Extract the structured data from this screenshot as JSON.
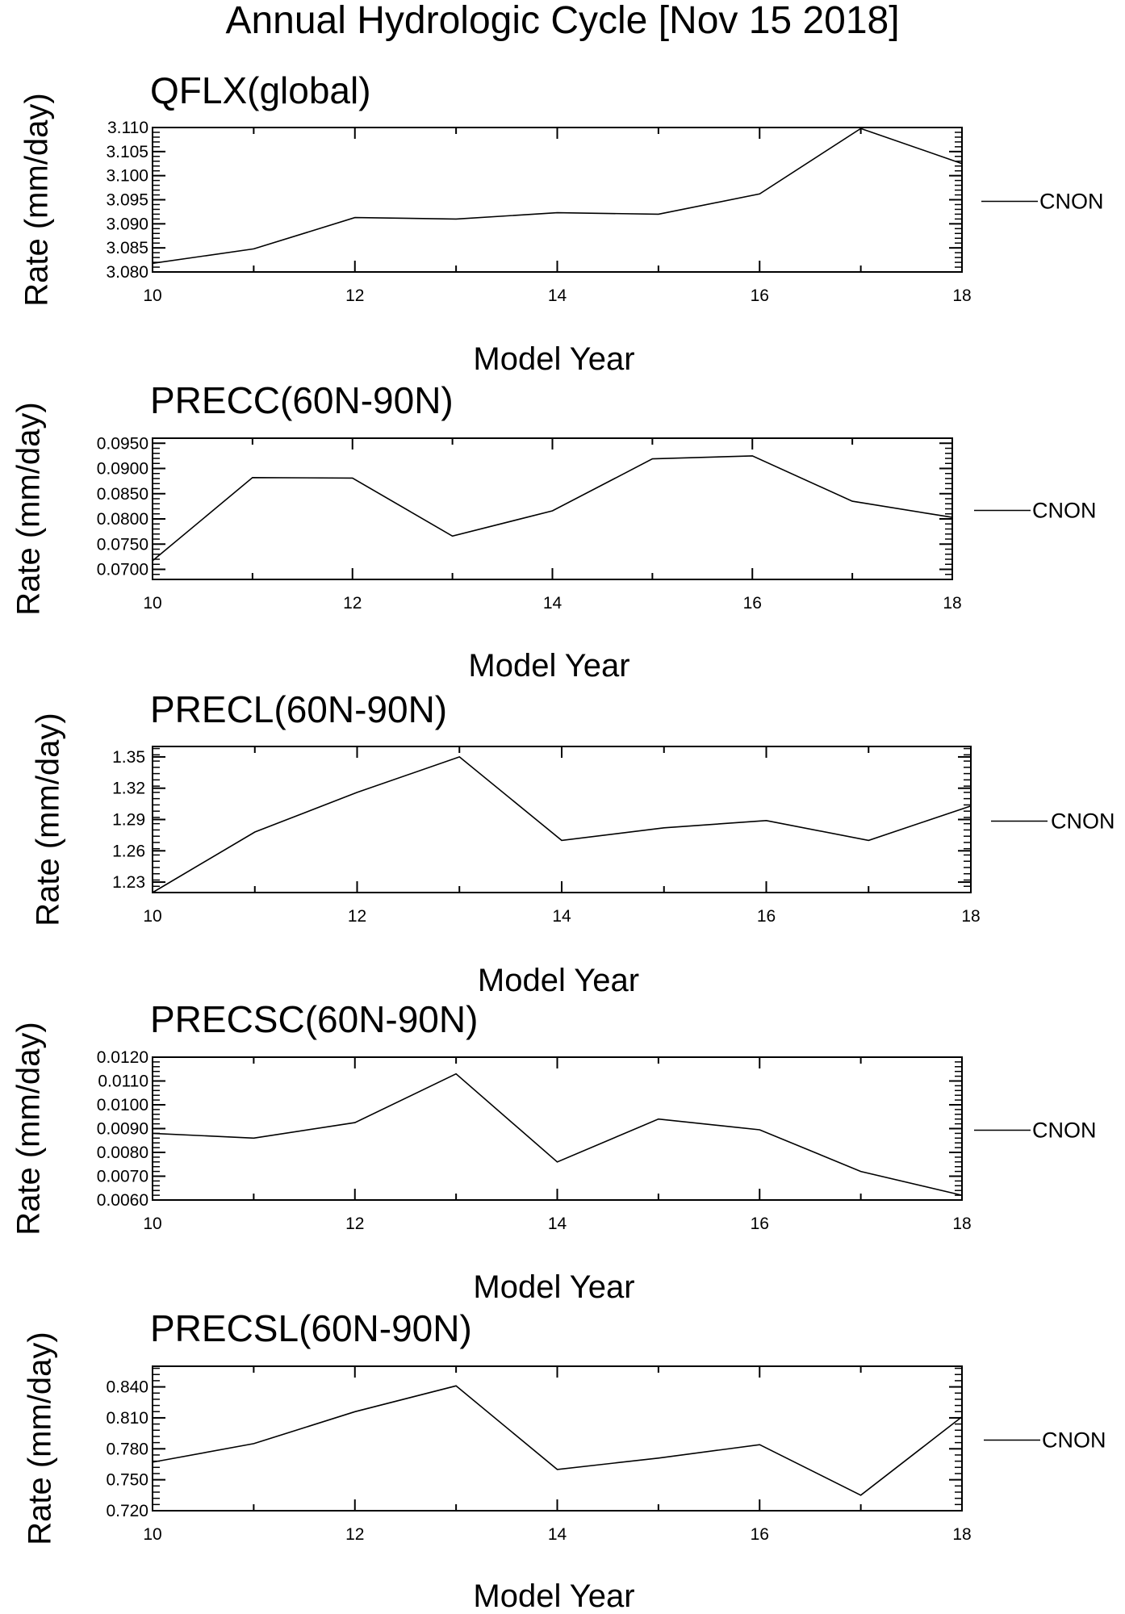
{
  "page": {
    "title": "Annual Hydrologic Cycle [Nov 15 2018]"
  },
  "chart_data": [
    {
      "type": "line",
      "title": "QFLX(global)",
      "xlabel": "Model Year",
      "ylabel": "Rate (mm/day)",
      "x": [
        10,
        11,
        12,
        13,
        14,
        15,
        16,
        17,
        18
      ],
      "xticks": [
        "10",
        "12",
        "14",
        "16",
        "18"
      ],
      "xlim": [
        10,
        18
      ],
      "yticks": [
        "3.080",
        "3.085",
        "3.090",
        "3.095",
        "3.100",
        "3.105",
        "3.110"
      ],
      "ylim": [
        3.08,
        3.11
      ],
      "series": [
        {
          "name": "CNON",
          "values": [
            3.0818,
            3.0848,
            3.0913,
            3.091,
            3.0923,
            3.092,
            3.0962,
            3.1098,
            3.1025
          ]
        }
      ],
      "legend": "right",
      "line_color": "#000000"
    },
    {
      "type": "line",
      "title": "PRECC(60N-90N)",
      "xlabel": "Model Year",
      "ylabel": "Rate (mm/day)",
      "x": [
        10,
        11,
        12,
        13,
        14,
        15,
        16,
        17,
        18
      ],
      "xticks": [
        "10",
        "12",
        "14",
        "16",
        "18"
      ],
      "xlim": [
        10,
        18
      ],
      "yticks": [
        "0.0700",
        "0.0750",
        "0.0800",
        "0.0850",
        "0.0900",
        "0.0950"
      ],
      "ylim": [
        0.068,
        0.096
      ],
      "series": [
        {
          "name": "CNON",
          "values": [
            0.0717,
            0.0882,
            0.0881,
            0.0766,
            0.0816,
            0.0919,
            0.0925,
            0.0835,
            0.0803
          ]
        }
      ],
      "legend": "right",
      "line_color": "#000000"
    },
    {
      "type": "line",
      "title": "PRECL(60N-90N)",
      "xlabel": "Model Year",
      "ylabel": "Rate (mm/day)",
      "x": [
        10,
        11,
        12,
        13,
        14,
        15,
        16,
        17,
        18
      ],
      "xticks": [
        "10",
        "12",
        "14",
        "16",
        "18"
      ],
      "xlim": [
        10,
        18
      ],
      "yticks": [
        "1.23",
        "1.26",
        "1.29",
        "1.32",
        "1.35"
      ],
      "ylim": [
        1.22,
        1.36
      ],
      "series": [
        {
          "name": "CNON",
          "values": [
            1.22,
            1.278,
            1.316,
            1.35,
            1.27,
            1.282,
            1.289,
            1.27,
            1.303
          ]
        }
      ],
      "legend": "right",
      "line_color": "#000000"
    },
    {
      "type": "line",
      "title": "PRECSC(60N-90N)",
      "xlabel": "Model Year",
      "ylabel": "Rate (mm/day)",
      "x": [
        10,
        11,
        12,
        13,
        14,
        15,
        16,
        17,
        18
      ],
      "xticks": [
        "10",
        "12",
        "14",
        "16",
        "18"
      ],
      "xlim": [
        10,
        18
      ],
      "yticks": [
        "0.0060",
        "0.0070",
        "0.0080",
        "0.0090",
        "0.0100",
        "0.0110",
        "0.0120"
      ],
      "ylim": [
        0.006,
        0.012
      ],
      "series": [
        {
          "name": "CNON",
          "values": [
            0.0088,
            0.0086,
            0.00925,
            0.0113,
            0.0076,
            0.0094,
            0.00895,
            0.0072,
            0.0062
          ]
        }
      ],
      "legend": "right",
      "line_color": "#000000"
    },
    {
      "type": "line",
      "title": "PRECSL(60N-90N)",
      "xlabel": "Model Year",
      "ylabel": "Rate (mm/day)",
      "x": [
        10,
        11,
        12,
        13,
        14,
        15,
        16,
        17,
        18
      ],
      "xticks": [
        "10",
        "12",
        "14",
        "16",
        "18"
      ],
      "xlim": [
        10,
        18
      ],
      "yticks": [
        "0.720",
        "0.750",
        "0.780",
        "0.810",
        "0.840"
      ],
      "ylim": [
        0.72,
        0.86
      ],
      "series": [
        {
          "name": "CNON",
          "values": [
            0.767,
            0.785,
            0.816,
            0.841,
            0.76,
            0.771,
            0.784,
            0.735,
            0.811
          ]
        }
      ],
      "legend": "right",
      "line_color": "#000000"
    }
  ]
}
